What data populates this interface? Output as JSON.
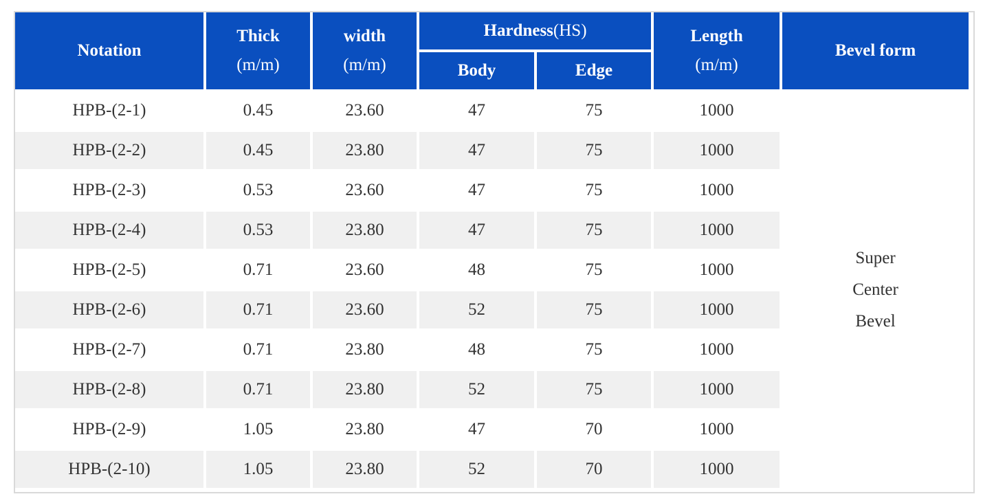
{
  "table": {
    "headers": {
      "notation": "Notation",
      "thick": "Thick",
      "thick_unit": "(m/m)",
      "width": "width",
      "width_unit": "(m/m)",
      "hardness": "Hardness",
      "hardness_unit": "(HS)",
      "body": "Body",
      "edge": "Edge",
      "length": "Length",
      "length_unit": "(m/m)",
      "bevel_form": "Bevel form"
    },
    "rows": [
      {
        "notation": "HPB-(2-1)",
        "thick": "0.45",
        "width": "23.60",
        "body": "47",
        "edge": "75",
        "length": "1000"
      },
      {
        "notation": "HPB-(2-2)",
        "thick": "0.45",
        "width": "23.80",
        "body": "47",
        "edge": "75",
        "length": "1000"
      },
      {
        "notation": "HPB-(2-3)",
        "thick": "0.53",
        "width": "23.60",
        "body": "47",
        "edge": "75",
        "length": "1000"
      },
      {
        "notation": "HPB-(2-4)",
        "thick": "0.53",
        "width": "23.80",
        "body": "47",
        "edge": "75",
        "length": "1000"
      },
      {
        "notation": "HPB-(2-5)",
        "thick": "0.71",
        "width": "23.60",
        "body": "48",
        "edge": "75",
        "length": "1000"
      },
      {
        "notation": "HPB-(2-6)",
        "thick": "0.71",
        "width": "23.60",
        "body": "52",
        "edge": "75",
        "length": "1000"
      },
      {
        "notation": "HPB-(2-7)",
        "thick": "0.71",
        "width": "23.80",
        "body": "48",
        "edge": "75",
        "length": "1000"
      },
      {
        "notation": "HPB-(2-8)",
        "thick": "0.71",
        "width": "23.80",
        "body": "52",
        "edge": "75",
        "length": "1000"
      },
      {
        "notation": "HPB-(2-9)",
        "thick": "1.05",
        "width": "23.80",
        "body": "47",
        "edge": "70",
        "length": "1000"
      },
      {
        "notation": "HPB-(2-10)",
        "thick": "1.05",
        "width": "23.80",
        "body": "52",
        "edge": "70",
        "length": "1000"
      }
    ],
    "bevel_lines": [
      "Super",
      "Center",
      "Bevel"
    ]
  },
  "colors": {
    "header_bg": "#0a4fbf",
    "header_text": "#ffffff",
    "alt_row_bg": "#f0f0f0",
    "body_text": "#333333"
  }
}
